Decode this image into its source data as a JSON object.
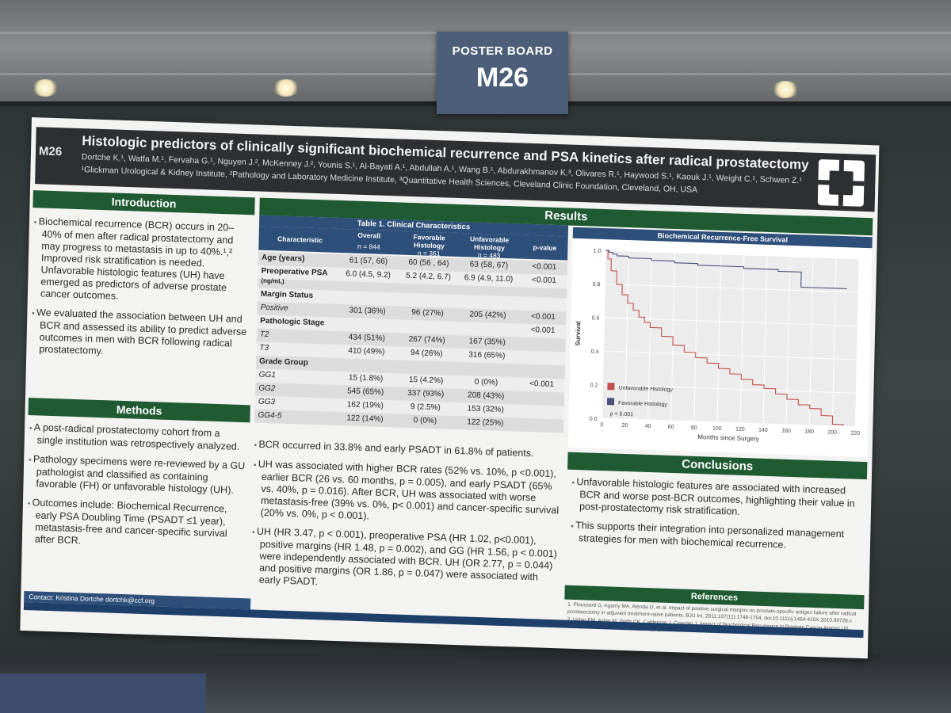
{
  "sign": {
    "label": "POSTER BOARD",
    "number": "M26"
  },
  "poster": {
    "badge": "M26",
    "title": "Histologic predictors of clinically significant biochemical recurrence and PSA kinetics after radical prostatectomy",
    "authors": "Dortche K.¹, Watfa M.¹, Fervaha G.¹, Nguyen J.², McKenney J.², Younis S.¹, Al-Bayati A.¹, Abdullah A.¹, Wang B.¹, Abdurakhmanov K.³, Olivares R.¹, Haywood S.¹, Kaouk J.¹, Weight C.¹, Schwen Z.¹",
    "affiliations": "¹Glickman Urological & Kidney Institute, ²Pathology and Laboratory Medicine Institute, ³Quantitative Health Sciences, Cleveland Clinic Foundation, Cleveland, OH, USA",
    "introduction": {
      "heading": "Introduction",
      "paragraphs": [
        "Biochemical recurrence (BCR) occurs in 20–40% of men after radical prostatectomy and may progress to metastasis in up to 40%.¹,² Improved risk stratification is needed. Unfavorable histologic features (UH) have emerged as predictors of adverse prostate cancer outcomes.",
        "We evaluated the association between UH and BCR and assessed its ability to predict adverse outcomes in men with BCR following radical prostatectomy."
      ]
    },
    "methods": {
      "heading": "Methods",
      "paragraphs": [
        "A post-radical prostatectomy cohort from a single institution was retrospectively analyzed.",
        "Pathology specimens were re-reviewed by a GU pathologist and classified as containing favorable (FH) or unfavorable histology (UH).",
        "Outcomes include: Biochemical Recurrence, early PSA Doubling Time (PSADT ≤1 year), metastasis-free and cancer-specific survival after BCR."
      ]
    },
    "contact": "Contact: Kristina Dortche dortchk@ccf.org",
    "results": {
      "heading": "Results",
      "table": {
        "caption": "Table 1. Clinical Characteristics",
        "headers": [
          "Characteristic",
          "Overall",
          "Favorable Histology",
          "Unfavorable Histology",
          "p-value"
        ],
        "subheaders": [
          "",
          "n = 844",
          "n = 361",
          "n = 483",
          ""
        ],
        "rows": [
          [
            "Age (years)",
            "61 (57, 66)",
            "60 (56 , 64)",
            "63 (58, 67)",
            "<0.001"
          ],
          [
            "Preoperative PSA",
            "6.0 (4.5, 9.2)",
            "5.2 (4.2, 6.7)",
            "6.9 (4.9, 11.0)",
            "<0.001"
          ],
          [
            "(ng/mL)",
            "",
            "",
            "",
            ""
          ],
          [
            "Margin Status",
            "",
            "",
            "",
            ""
          ],
          [
            "Positive",
            "301 (36%)",
            "96 (27%)",
            "205 (42%)",
            "<0.001"
          ],
          [
            "Pathologic Stage",
            "",
            "",
            "",
            "<0.001"
          ],
          [
            "T2",
            "434 (51%)",
            "267 (74%)",
            "167 (35%)",
            ""
          ],
          [
            "T3",
            "410 (49%)",
            "94 (26%)",
            "316 (65%)",
            ""
          ],
          [
            "Grade Group",
            "",
            "",
            "",
            ""
          ],
          [
            "GG1",
            "15 (1.8%)",
            "15 (4.2%)",
            "0 (0%)",
            "<0.001"
          ],
          [
            "GG2",
            "545 (65%)",
            "337 (93%)",
            "208 (43%)",
            ""
          ],
          [
            "GG3",
            "162 (19%)",
            "9 (2.5%)",
            "153 (32%)",
            ""
          ],
          [
            "GG4-5",
            "122 (14%)",
            "0 (0%)",
            "122 (25%)",
            ""
          ]
        ]
      },
      "paragraphs": [
        "BCR occurred in 33.8% and early PSADT in 61.8% of patients.",
        "UH was associated with higher BCR rates (52% vs. 10%, p <0.001), earlier BCR (26 vs. 60 months, p = 0.005), and early PSADT (65% vs. 40%, p = 0.016). After BCR, UH was associated with worse metastasis-free (39% vs. 0%, p< 0.001) and cancer-specific survival (20% vs. 0%, p < 0.001).",
        "UH (HR 3.47, p < 0.001), preoperative PSA (HR 1.02, p<0.001), positive margins (HR 1.48, p = 0.002), and GG (HR 1.56, p < 0.001) were independently associated with BCR. UH (OR 2.77, p = 0.044) and positive margins (OR 1.86, p = 0.047) were associated with early PSADT."
      ]
    },
    "conclusions": {
      "heading": "Conclusions",
      "paragraphs": [
        "Unfavorable histologic features are associated with increased BCR and worse post-BCR outcomes, highlighting their value in post-prostatectomy risk stratification.",
        "This supports their integration into personalized management strategies for men with biochemical recurrence."
      ]
    },
    "references": {
      "heading": "References",
      "items": [
        "1. Ploussard G, Agamy MA, Alenda O, et al. Impact of positive surgical margins on prostate-specific antigen failure after radical prostatectomy in adjuvant treatment-naive patients. BJU Int. 2011;107(11):1748-1754. doi:10.1111/j.1464-410X.2010.09728.x",
        "2. Uchio EM, Aslan M, Wells CK, Calderone J, Concato J. Impact of Biochemical Recurrence in Prostate Cancer Among US Veterans. Arch Intern Med. 2010;170(15):1390-1395. doi:10.1001/archinternmed.2010.262"
      ]
    }
  },
  "chart_data": {
    "type": "line",
    "title": "Biochemical Recurrence-Free Survival",
    "xlabel": "Months since Surgery",
    "ylabel": "Survival",
    "xlim": [
      0,
      220
    ],
    "ylim": [
      0,
      1.0
    ],
    "x_ticks": [
      0,
      20,
      40,
      60,
      80,
      100,
      120,
      140,
      160,
      180,
      200,
      220
    ],
    "y_ticks": [
      0.0,
      0.2,
      0.4,
      0.6,
      0.8,
      1.0
    ],
    "annotation": "p < 0.001",
    "legend_position": "bottom-left",
    "series": [
      {
        "name": "Unfavorable Histology",
        "color": "#c0504d",
        "x": [
          0,
          2,
          5,
          10,
          15,
          20,
          25,
          30,
          35,
          40,
          50,
          60,
          70,
          80,
          90,
          100,
          110,
          120,
          130,
          140,
          150,
          160,
          170,
          180,
          190,
          200,
          210
        ],
        "y": [
          1.0,
          0.95,
          0.88,
          0.8,
          0.74,
          0.69,
          0.65,
          0.61,
          0.58,
          0.55,
          0.5,
          0.45,
          0.41,
          0.38,
          0.35,
          0.32,
          0.29,
          0.26,
          0.23,
          0.21,
          0.18,
          0.15,
          0.12,
          0.1,
          0.06,
          0.01,
          0.01
        ]
      },
      {
        "name": "Favorable Histology",
        "color": "#4a4f7a",
        "x": [
          0,
          3,
          6,
          10,
          20,
          40,
          60,
          80,
          100,
          120,
          140,
          150,
          160,
          170,
          200,
          210
        ],
        "y": [
          1.0,
          0.99,
          0.98,
          0.97,
          0.96,
          0.95,
          0.94,
          0.93,
          0.93,
          0.92,
          0.92,
          0.91,
          0.91,
          0.82,
          0.82,
          0.82
        ]
      }
    ]
  }
}
